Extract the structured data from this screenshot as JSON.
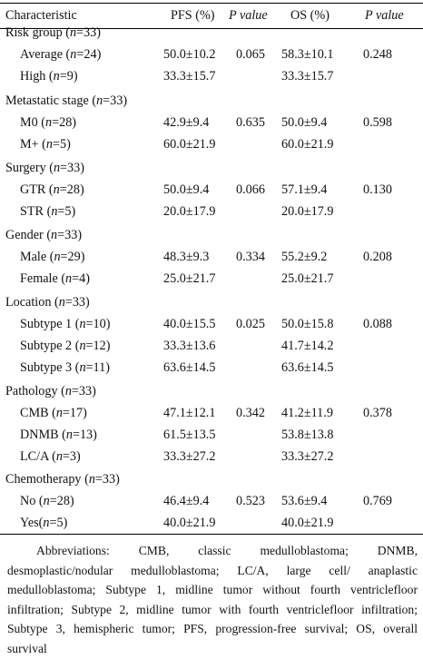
{
  "header": {
    "characteristic": "Characteristic",
    "pfs": "PFS (%)",
    "p_value": "P value",
    "os": "OS (%)",
    "p_value2": "P value"
  },
  "groups": [
    {
      "name": "Risk group",
      "n": "(n=33)",
      "rows": [
        {
          "label": "Average",
          "n": "(n=24)",
          "pfs": "50.0±10.2",
          "p_pfs": "0.065",
          "os": "58.3±10.1",
          "p_os": "0.248"
        },
        {
          "label": "High",
          "n": "(n=9)",
          "pfs": "33.3±15.7",
          "p_pfs": "",
          "os": "33.3±15.7",
          "p_os": ""
        }
      ]
    },
    {
      "name": "Metastatic stage",
      "n": "(n=33)",
      "rows": [
        {
          "label": "M0",
          "n": "(n=28)",
          "pfs": "42.9±9.4",
          "p_pfs": "0.635",
          "os": "50.0±9.4",
          "p_os": "0.598"
        },
        {
          "label": "M+",
          "n": "(n=5)",
          "pfs": "60.0±21.9",
          "p_pfs": "",
          "os": "60.0±21.9",
          "p_os": ""
        }
      ]
    },
    {
      "name": "Surgery",
      "n": "(n=33)",
      "rows": [
        {
          "label": "GTR",
          "n": "(n=28)",
          "pfs": "50.0±9.4",
          "p_pfs": "0.066",
          "os": "57.1±9.4",
          "p_os": "0.130"
        },
        {
          "label": "STR",
          "n": "(n=5)",
          "pfs": "20.0±17.9",
          "p_pfs": "",
          "os": "20.0±17.9",
          "p_os": ""
        }
      ]
    },
    {
      "name": "Gender",
      "n": "(n=33)",
      "rows": [
        {
          "label": "Male",
          "n": "(n=29)",
          "pfs": "48.3±9.3",
          "p_pfs": "0.334",
          "os": "55.2±9.2",
          "p_os": "0.208"
        },
        {
          "label": "Female",
          "n": "(n=4)",
          "pfs": "25.0±21.7",
          "p_pfs": "",
          "os": "25.0±21.7",
          "p_os": ""
        }
      ]
    },
    {
      "name": "Location",
      "n": "(n=33)",
      "rows": [
        {
          "label": "Subtype 1",
          "n": "(n=10)",
          "pfs": "40.0±15.5",
          "p_pfs": "0.025",
          "os": "50.0±15.8",
          "p_os": "0.088"
        },
        {
          "label": "Subtype 2",
          "n": "(n=12)",
          "pfs": "33.3±13.6",
          "p_pfs": "",
          "os": "41.7±14.2",
          "p_os": ""
        },
        {
          "label": "Subtype 3",
          "n": "(n=11)",
          "pfs": "63.6±14.5",
          "p_pfs": "",
          "os": "63.6±14.5",
          "p_os": ""
        }
      ]
    },
    {
      "name": "Pathology",
      "n": "(n=33)",
      "rows": [
        {
          "label": "CMB",
          "n": "(n=17)",
          "pfs": "47.1±12.1",
          "p_pfs": "0.342",
          "os": "41.2±11.9",
          "p_os": "0.378"
        },
        {
          "label": "DNMB",
          "n": "(n=13)",
          "pfs": "61.5±13.5",
          "p_pfs": "",
          "os": "53.8±13.8",
          "p_os": ""
        },
        {
          "label": "LC/A",
          "n": "(n=3)",
          "pfs": "33.3±27.2",
          "p_pfs": "",
          "os": "33.3±27.2",
          "p_os": ""
        }
      ]
    },
    {
      "name": "Chemotherapy",
      "n": "(n=33)",
      "rows": [
        {
          "label": "No",
          "n": "(n=28)",
          "pfs": "46.4±9.4",
          "p_pfs": "0.523",
          "os": "53.6±9.4",
          "p_os": "0.769"
        },
        {
          "label": "Yes",
          "n": "(n=5)",
          "pfs": "40.0±21.9",
          "p_pfs": "",
          "os": "40.0±21.9",
          "p_os": ""
        }
      ]
    }
  ],
  "footnote": "Abbreviations: CMB, classic medulloblastoma; DNMB, desmoplastic/nodular medulloblastoma; LC/A, large cell/ anaplastic medulloblastoma; Subtype 1, midline tumor without fourth ventriclefloor infiltration; Subtype 2, midline tumor with fourth ventriclefloor infiltration; Subtype 3, hemispheric tumor; PFS, progression-free survival; OS, overall survival"
}
